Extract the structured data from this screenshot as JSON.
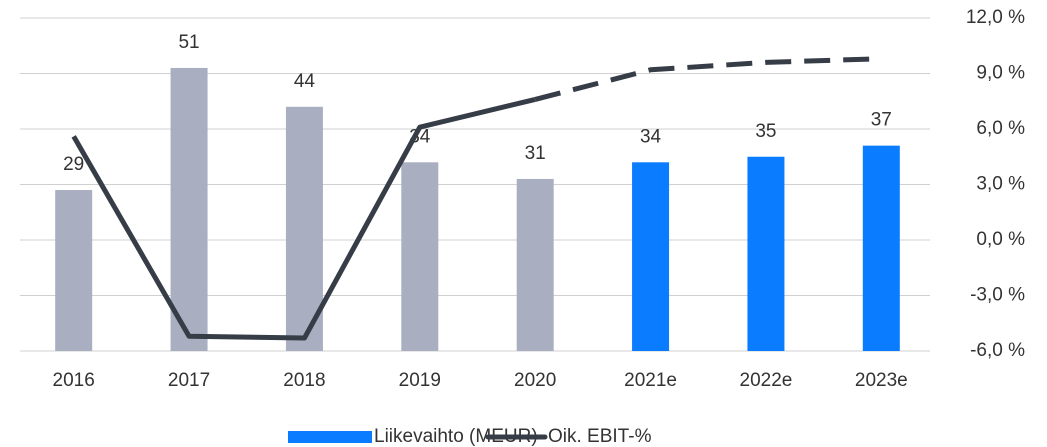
{
  "chart_data": {
    "type": "bar",
    "categories": [
      "2016",
      "2017",
      "2018",
      "2019",
      "2020",
      "2021e",
      "2022e",
      "2023e"
    ],
    "series": [
      {
        "name": "Liikevaihto (MEUR)",
        "type": "bar",
        "color": "#0a7cff",
        "colors": [
          "#a9afc0",
          "#a9afc0",
          "#a9afc0",
          "#a9afc0",
          "#a9afc0",
          "#0a7cff",
          "#0a7cff",
          "#0a7cff"
        ],
        "values": [
          29,
          51,
          44,
          34,
          31,
          34,
          35,
          37
        ]
      },
      {
        "name": "Oik. EBIT-%",
        "type": "line",
        "axis": "y2",
        "color": "#363d47",
        "dash_from": 4,
        "values": [
          5.6,
          -5.2,
          -5.3,
          6.1,
          7.6,
          9.2,
          9.6,
          9.8
        ]
      }
    ],
    "ylim": [
      0,
      60
    ],
    "y2lim": [
      -6,
      12
    ],
    "y2ticks": [
      {
        "value": 12,
        "label": "12,0 %"
      },
      {
        "value": 9,
        "label": "9,0 %"
      },
      {
        "value": 6,
        "label": "6,0 %"
      },
      {
        "value": 3,
        "label": "3,0 %"
      },
      {
        "value": 0,
        "label": "0,0 %"
      },
      {
        "value": -3,
        "label": "-3,0 %"
      },
      {
        "value": -6,
        "label": "-6,0 %"
      }
    ],
    "grid": true
  }
}
